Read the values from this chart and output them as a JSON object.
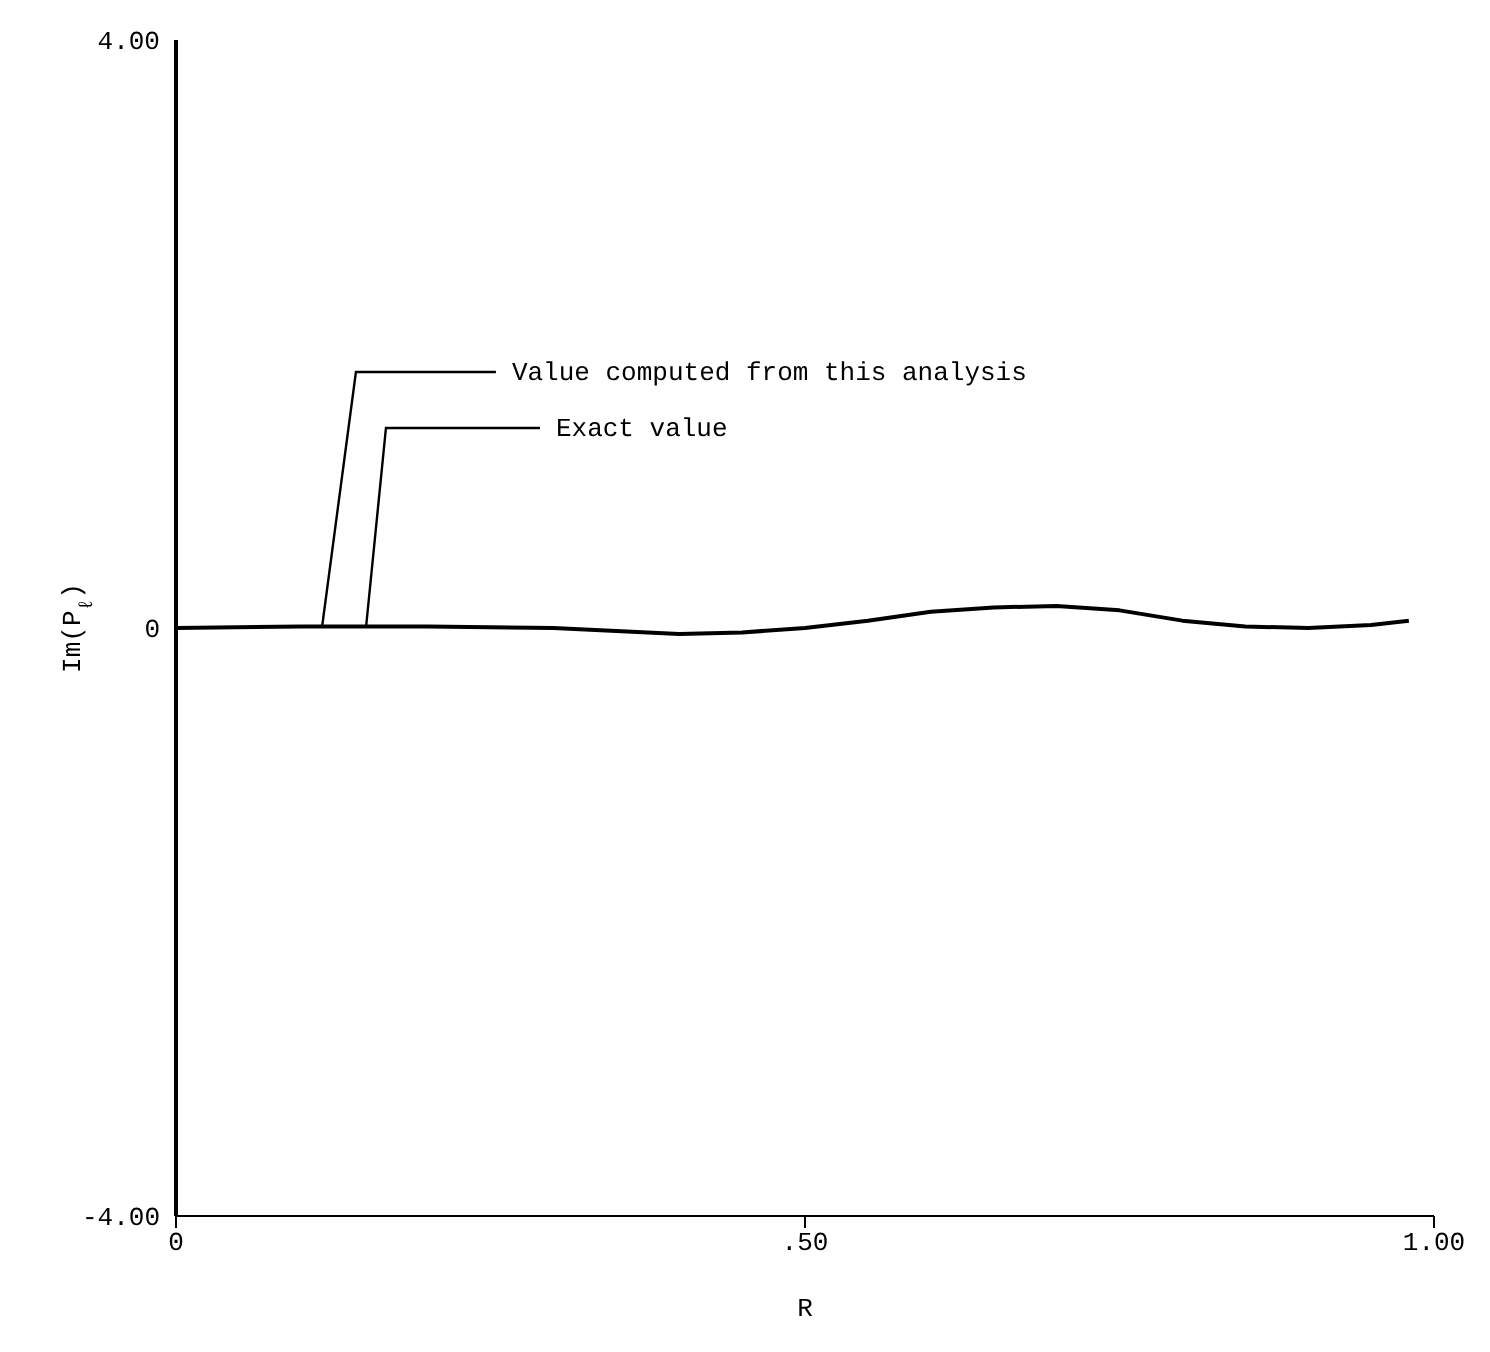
{
  "chart_data": {
    "type": "line",
    "xlabel": "R",
    "ylabel": "Im(P$_{ℓ}$)",
    "xlim": [
      0,
      1
    ],
    "ylim": [
      -4,
      4
    ],
    "xticks": [
      0,
      {
        "value": 0.5,
        "label": ".50"
      },
      {
        "value": 1,
        "label": "1.00"
      }
    ],
    "yticks": [
      {
        "value": -4,
        "label": "-4.00"
      },
      0,
      {
        "value": 4,
        "label": "4.00"
      }
    ],
    "series": [
      {
        "color": "#000000",
        "x": [
          0,
          0.1,
          0.2,
          0.3,
          0.35,
          0.4,
          0.45,
          0.5,
          0.55,
          0.6,
          0.65,
          0.7,
          0.75,
          0.8,
          0.85,
          0.9,
          0.95,
          0.98
        ],
        "values": [
          0,
          0.01,
          0.01,
          0,
          -0.02,
          -0.04,
          -0.03,
          0,
          0.05,
          0.11,
          0.14,
          0.15,
          0.12,
          0.05,
          0.01,
          0,
          0.02,
          0.05
        ]
      }
    ],
    "annotations": [
      {
        "text": "Value computed from this analysis",
        "x": 0.116,
        "y": 0
      },
      {
        "text": "Exact value",
        "x": 0.151,
        "y": 0
      }
    ],
    "grid": false,
    "legend": false,
    "marker": "none",
    "line_style": "solid"
  }
}
